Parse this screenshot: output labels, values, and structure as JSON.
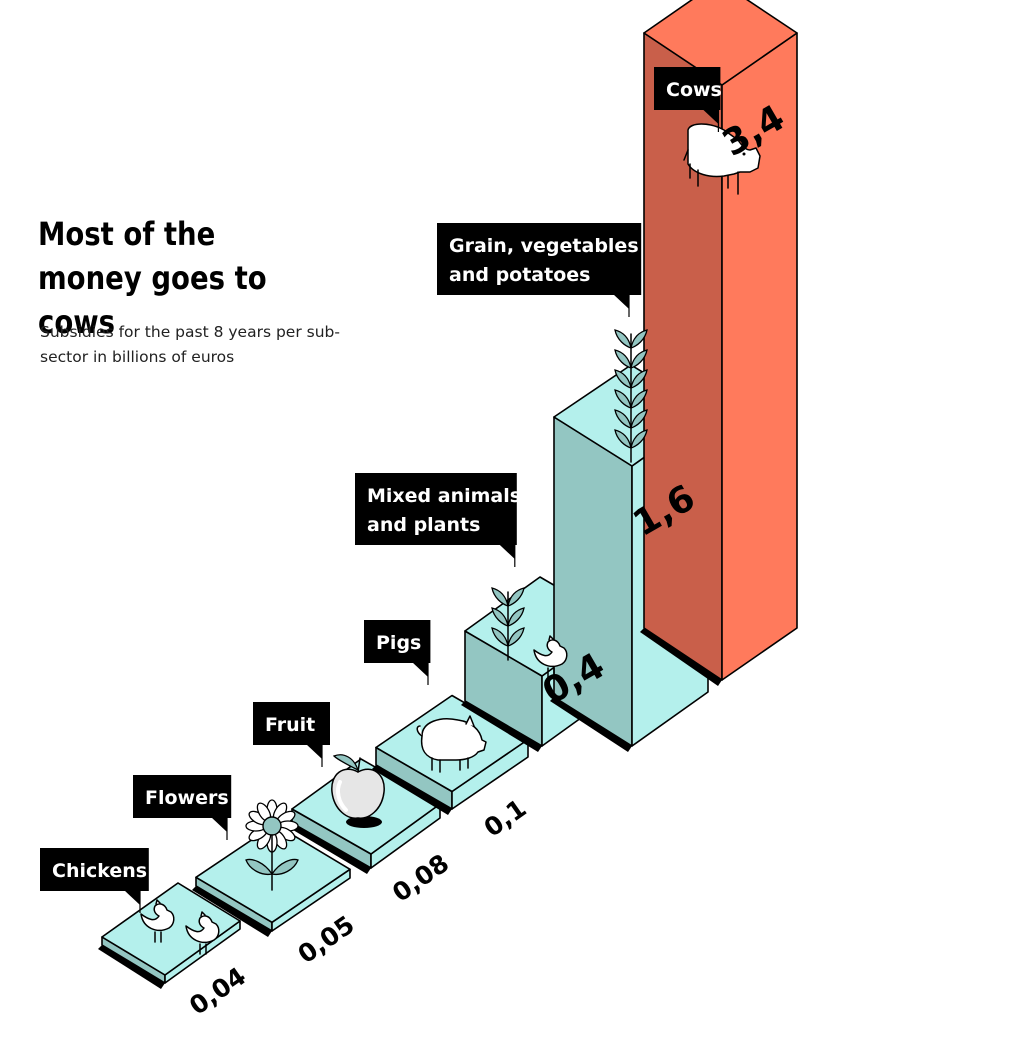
{
  "title": "Most of the money goes to cows",
  "subtitle": "Subsidies for the past 8 years per sub-sector in billions of euros",
  "colors": {
    "teal_top": "#b4f0ec",
    "teal_left": "#93c6c2",
    "teal_right": "#b4f0ec",
    "red_top": "#ff7a5c",
    "red_left": "#c95f4a",
    "red_right": "#ff7a5c",
    "label_bg": "#000000",
    "label_text": "#ffffff"
  },
  "chart_data": {
    "type": "bar",
    "title": "Most of the money goes to cows",
    "subtitle": "Subsidies for the past 8 years per sub-sector in billions of euros",
    "categories": [
      "Chickens",
      "Flowers",
      "Fruit",
      "Pigs",
      "Mixed animals and plants",
      "Grain, vegetables and potatoes",
      "Cows"
    ],
    "values": [
      0.04,
      0.05,
      0.08,
      0.1,
      0.4,
      1.6,
      3.4
    ],
    "value_labels": [
      "0,04",
      "0,05",
      "0,08",
      "0,1",
      "0,4",
      "1,6",
      "3,4"
    ],
    "category_label_lines": [
      [
        "Chickens"
      ],
      [
        "Flowers"
      ],
      [
        "Fruit"
      ],
      [
        "Pigs"
      ],
      [
        "Mixed animals",
        "and plants"
      ],
      [
        "Grain, vegetables",
        "and potatoes"
      ],
      [
        "Cows"
      ]
    ],
    "icons": [
      "chicken-icon",
      "flower-icon",
      "apple-icon",
      "pig-icon",
      "wheat-and-chicken-icon",
      "wheat-icon",
      "cow-icon"
    ],
    "highlight": "Cows",
    "style": "isometric 3D bars"
  }
}
